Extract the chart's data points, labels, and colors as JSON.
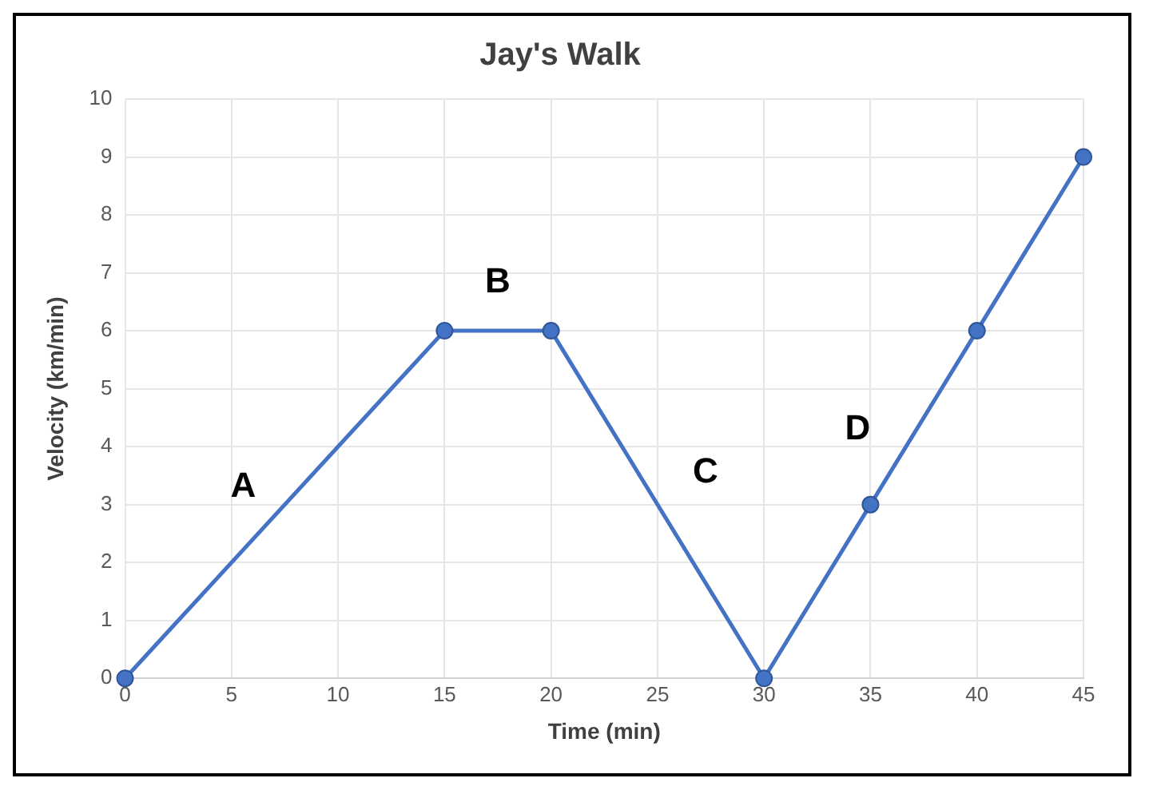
{
  "chart_data": {
    "type": "line",
    "title": "Jay's Walk",
    "xlabel": "Time (min)",
    "ylabel": "Velocity (km/min)",
    "x": [
      0,
      15,
      20,
      30,
      35,
      40,
      45
    ],
    "series": [
      {
        "color": "#4472c4",
        "values": [
          0,
          6,
          6,
          0,
          3,
          6,
          9
        ]
      }
    ],
    "xlim": [
      0,
      45
    ],
    "xticks": [
      0,
      5,
      10,
      15,
      20,
      25,
      30,
      35,
      40,
      45
    ],
    "ylim": [
      0,
      10
    ],
    "yticks": [
      0,
      1,
      2,
      3,
      4,
      5,
      6,
      7,
      8,
      9,
      10
    ],
    "grid": true,
    "marker": "circle",
    "line_style": "solid",
    "legend": false,
    "annotations": [
      "A",
      "B",
      "C",
      "D"
    ]
  }
}
